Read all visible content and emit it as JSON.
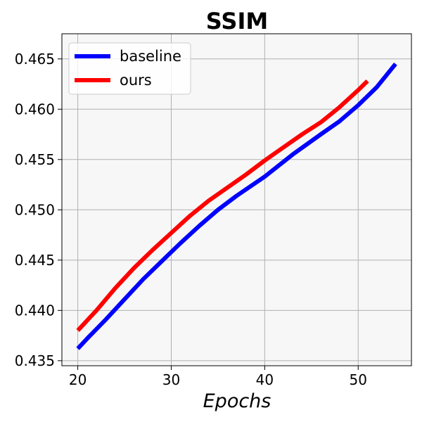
{
  "chart_data": {
    "type": "line",
    "title": "SSIM",
    "xlabel": "Epochs",
    "ylabel": "",
    "xlim": [
      18.3,
      55.7
    ],
    "ylim": [
      0.4345,
      0.4675
    ],
    "xticks": [
      20,
      30,
      40,
      50
    ],
    "yticks": [
      0.435,
      0.44,
      0.445,
      0.45,
      0.455,
      0.46,
      0.465
    ],
    "ytick_labels": [
      "0.435",
      "0.440",
      "0.445",
      "0.450",
      "0.455",
      "0.460",
      "0.465"
    ],
    "grid": true,
    "legend_position": "top-left",
    "series": [
      {
        "name": "baseline",
        "color": "#0000ff",
        "x": [
          20,
          21,
          23,
          25,
          27,
          29,
          31,
          33,
          35,
          37,
          40,
          43,
          46,
          48,
          50,
          52,
          54
        ],
        "y": [
          0.4362,
          0.4372,
          0.4391,
          0.4411,
          0.4431,
          0.4449,
          0.4467,
          0.4484,
          0.45,
          0.4514,
          0.4533,
          0.4555,
          0.4575,
          0.4588,
          0.4604,
          0.4622,
          0.4645
        ]
      },
      {
        "name": "ours",
        "color": "#ff0000",
        "x": [
          20,
          22,
          24,
          26,
          28,
          30,
          32,
          34,
          36,
          38,
          40,
          42,
          44,
          46,
          48,
          50,
          51
        ],
        "y": [
          0.438,
          0.44,
          0.4422,
          0.4442,
          0.446,
          0.4477,
          0.4494,
          0.4509,
          0.4522,
          0.4535,
          0.4549,
          0.4562,
          0.4575,
          0.4587,
          0.4602,
          0.4619,
          0.4628
        ]
      }
    ]
  }
}
